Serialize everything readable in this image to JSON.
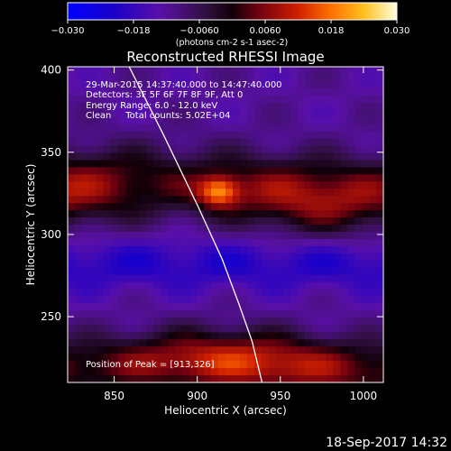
{
  "chart_data": {
    "type": "heatmap",
    "title": "Reconstructed RHESSI Image",
    "xlabel": "Heliocentric X (arcsec)",
    "ylabel": "Heliocentric Y (arcsec)",
    "xlim": [
      822,
      1012
    ],
    "ylim": [
      210,
      402
    ],
    "x_ticks": [
      850,
      900,
      950,
      1000
    ],
    "y_ticks": [
      250,
      300,
      350,
      400
    ],
    "colorbar": {
      "range": [
        -0.03,
        0.03
      ],
      "tick_values": [
        -0.03,
        -0.018,
        -0.006,
        0.006,
        0.018,
        0.03
      ],
      "tick_labels": [
        "-0.030",
        "-0.018",
        "-0.0060",
        "0.0060",
        "0.018",
        "0.030"
      ],
      "unit_label": "(photons cm-2 s-1 asec-2)"
    },
    "annotations": [
      "29-Mar-2015 14:37:40.000 to 14:47:40.000",
      "Detectors: 3F 5F 6F 7F 8F 9F, Att 0",
      "Energy Range: 6.0 - 12.0 keV",
      "Clean     Total counts: 5.02E+04"
    ],
    "peak_label": "Position of Peak = [913,326]",
    "peak": {
      "x": 913,
      "y": 326,
      "value": 0.03
    },
    "bands": [
      {
        "name": "upper",
        "y_center": 327,
        "y_halfwidth": 22,
        "peak_value": 0.027,
        "x_center": 913
      },
      {
        "name": "lower",
        "y_center": 220,
        "y_halfwidth": 18,
        "peak_value": 0.022,
        "x_center": 930
      }
    ],
    "limb_curve": [
      [
        859,
        402
      ],
      [
        880,
        360
      ],
      [
        900,
        318
      ],
      [
        915,
        285
      ],
      [
        925,
        258
      ],
      [
        933,
        235
      ],
      [
        939,
        210
      ]
    ],
    "footer": "18-Sep-2017 14:32"
  }
}
